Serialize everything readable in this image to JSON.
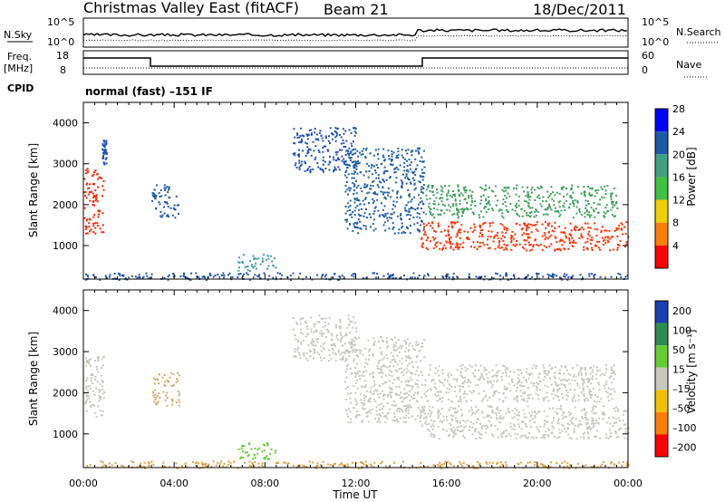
{
  "header": {
    "title": "Christmas Valley East (fitACF)",
    "beam": "Beam 21",
    "date": "18/Dec/2011"
  },
  "mode": {
    "cpid_label": "CPID",
    "text": "normal (fast) –151 IF"
  },
  "nsky_panel": {
    "left_label": "N.Sky",
    "right_label": "N.Search",
    "left_ticks": [
      "10^5",
      "10^0"
    ],
    "right_ticks": [
      "10^5",
      "10^0"
    ]
  },
  "freq_panel": {
    "left_label_1": "Freq.",
    "left_label_2": "[MHz]",
    "right_label": "Nave",
    "left_ticks": [
      "18",
      "8"
    ],
    "right_ticks": [
      "60",
      "0"
    ]
  },
  "chart_data": [
    {
      "type": "heatmap",
      "name": "power",
      "ylabel": "Slant Range [km]",
      "ylim": [
        180,
        4500
      ],
      "yticks": [
        "1000",
        "2000",
        "3000",
        "4000"
      ],
      "colorbar_label": "Power [dB]",
      "colorbar_ticks": [
        "4",
        "8",
        "12",
        "16",
        "20",
        "24",
        "28"
      ],
      "colorbar_colors": [
        "#0000ff",
        "#2058a8",
        "#40a080",
        "#40c040",
        "#f0d000",
        "#ff8000",
        "#ff0000"
      ],
      "bands": [
        {
          "x": [
            0.0,
            0.9
          ],
          "y": [
            1300,
            2900
          ],
          "color": "#ff2000"
        },
        {
          "x": [
            0.8,
            1.0
          ],
          "y": [
            3000,
            3600
          ],
          "color": "#2050b0"
        },
        {
          "x": [
            3.0,
            4.2
          ],
          "y": [
            1700,
            2500
          ],
          "color": "#2058a8"
        },
        {
          "x": [
            6.8,
            8.5
          ],
          "y": [
            400,
            800
          ],
          "color": "#40a0a0"
        },
        {
          "x": [
            9.2,
            12.0
          ],
          "y": [
            2800,
            3900
          ],
          "color": "#2050b0"
        },
        {
          "x": [
            11.5,
            15.0
          ],
          "y": [
            1300,
            3400
          ],
          "color": "#2060a0"
        },
        {
          "x": [
            14.8,
            24.0
          ],
          "y": [
            900,
            1600
          ],
          "color": "#ff3000"
        },
        {
          "x": [
            15.0,
            23.5
          ],
          "y": [
            1700,
            2500
          ],
          "color": "#40a060"
        },
        {
          "x": [
            0.0,
            24.0
          ],
          "y": [
            180,
            350
          ],
          "color": "#2050b0"
        }
      ]
    },
    {
      "type": "heatmap",
      "name": "velocity",
      "ylabel": "Slant Range [km]",
      "ylim": [
        180,
        4500
      ],
      "yticks": [
        "1000",
        "2000",
        "3000",
        "4000"
      ],
      "xlabel": "Time UT",
      "xticks": [
        "00:00",
        "04:00",
        "08:00",
        "12:00",
        "16:00",
        "20:00",
        "00:00"
      ],
      "colorbar_label": "Velocity [m s⁻¹]",
      "colorbar_ticks": [
        "200",
        "100",
        "50",
        "15",
        "–15",
        "–50",
        "–100",
        "–200"
      ],
      "colorbar_colors": [
        "#1a3fb0",
        "#2f8c50",
        "#66cc33",
        "#c8c8c0",
        "#f0c000",
        "#ff8000",
        "#ff0000"
      ],
      "bands": [
        {
          "x": [
            0.0,
            0.9
          ],
          "y": [
            1400,
            2900
          ],
          "color": "#c8c8c0"
        },
        {
          "x": [
            3.0,
            4.2
          ],
          "y": [
            1700,
            2500
          ],
          "color": "#d0b070"
        },
        {
          "x": [
            6.8,
            8.5
          ],
          "y": [
            400,
            800
          ],
          "color": "#66cc33"
        },
        {
          "x": [
            9.2,
            12.0
          ],
          "y": [
            2800,
            3900
          ],
          "color": "#c8c8c0"
        },
        {
          "x": [
            11.5,
            15.0
          ],
          "y": [
            1300,
            3400
          ],
          "color": "#c8c8c0"
        },
        {
          "x": [
            14.8,
            24.0
          ],
          "y": [
            900,
            1700
          ],
          "color": "#c8c8c0"
        },
        {
          "x": [
            15.0,
            23.5
          ],
          "y": [
            1800,
            2700
          ],
          "color": "#c8c8c0"
        },
        {
          "x": [
            0.0,
            24.0
          ],
          "y": [
            180,
            350
          ],
          "color": "#e0a040"
        }
      ]
    }
  ]
}
